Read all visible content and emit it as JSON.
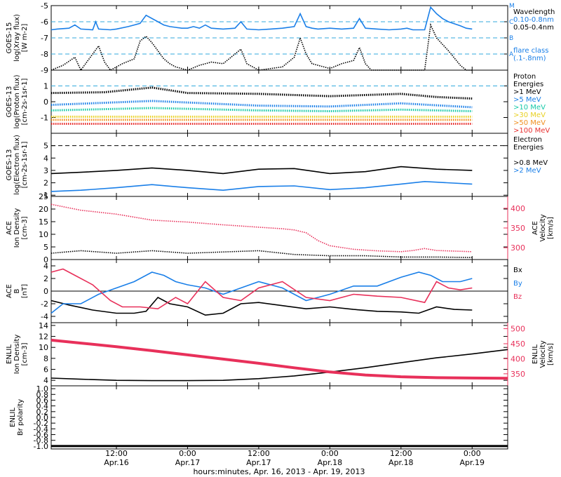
{
  "figure": {
    "xaxis_title": "hours:minutes, Apr. 16, 2013 - Apr. 19, 2013",
    "xticks": [
      {
        "t": 12,
        "time": "12:00",
        "date": "Apr.16"
      },
      {
        "t": 24,
        "time": "0:00",
        "date": "Apr.17"
      },
      {
        "t": 36,
        "time": "12:00",
        "date": "Apr.17"
      },
      {
        "t": 48,
        "time": "0:00",
        "date": "Apr.18"
      },
      {
        "t": 60,
        "time": "12:00",
        "date": "Apr.18"
      },
      {
        "t": 72,
        "time": "0:00",
        "date": "Apr.19"
      }
    ],
    "xrange_hours": [
      1,
      78
    ]
  },
  "colors": {
    "axis": "#000000",
    "blue": "#1a7fe8",
    "cyan": "#22c4e8",
    "pink": "#e8305a",
    "teal": "#15c9a8",
    "yellow": "#e8d020",
    "orange": "#f09020",
    "red": "#e83030",
    "dashed": "#33aadd"
  },
  "chart_data": [
    {
      "id": "goes-xray",
      "type": "line",
      "ylabel": [
        "GOES-15",
        "log(Xray flux)",
        "[W m-2]"
      ],
      "ylim": [
        -9,
        -5
      ],
      "yticks": [
        -9,
        -8,
        -7,
        -6,
        -5
      ],
      "right_labels": [
        {
          "text": "Wavelength",
          "color": "#000000"
        },
        {
          "text": "0.10-0.8nm",
          "color": "#1a7fe8"
        },
        {
          "text": "0.05-0.4nm",
          "color": "#000000"
        },
        {
          "text": "",
          "color": "#000000"
        },
        {
          "text": "",
          "color": "#000000"
        },
        {
          "text": "flare class",
          "color": "#1a7fe8"
        },
        {
          "text": "(.1-.8nm)",
          "color": "#1a7fe8"
        }
      ],
      "flare_classes": [
        {
          "label": "M",
          "value": -5
        },
        {
          "label": "C",
          "value": -6
        },
        {
          "label": "B",
          "value": -7
        },
        {
          "label": "A",
          "value": -8
        }
      ],
      "series": [
        {
          "name": "0.10-0.8nm",
          "color": "#1a7fe8",
          "x": [
            1,
            2,
            4,
            5,
            6,
            8,
            8.5,
            9,
            11,
            12,
            14,
            15,
            16,
            17,
            19,
            20,
            21,
            22,
            23,
            24,
            25,
            26,
            27,
            28,
            30,
            32,
            33,
            34,
            36,
            38,
            40,
            42,
            43,
            44,
            45,
            46,
            48,
            50,
            52,
            53,
            54,
            56,
            58,
            60,
            61,
            62,
            64,
            65,
            66,
            67,
            68,
            70,
            71,
            72
          ],
          "values": [
            -6.5,
            -6.45,
            -6.4,
            -6.2,
            -6.45,
            -6.5,
            -6.0,
            -6.45,
            -6.5,
            -6.45,
            -6.3,
            -6.2,
            -6.1,
            -5.6,
            -6.0,
            -6.2,
            -6.3,
            -6.35,
            -6.4,
            -6.4,
            -6.3,
            -6.4,
            -6.2,
            -6.4,
            -6.45,
            -6.4,
            -6.0,
            -6.45,
            -6.5,
            -6.45,
            -6.4,
            -6.3,
            -5.5,
            -6.3,
            -6.4,
            -6.45,
            -6.4,
            -6.45,
            -6.4,
            -5.8,
            -6.4,
            -6.45,
            -6.5,
            -6.45,
            -6.4,
            -6.5,
            -6.5,
            -5.1,
            -5.5,
            -5.8,
            -6.0,
            -6.25,
            -6.4,
            -6.45
          ]
        },
        {
          "name": "0.05-0.4nm",
          "color": "#000000",
          "x": [
            1,
            3,
            5,
            6,
            7,
            9,
            10,
            11,
            13,
            15,
            16,
            17,
            18,
            19,
            20,
            21,
            22,
            23,
            24,
            26,
            28,
            30,
            33,
            34,
            36,
            40,
            42,
            43,
            44,
            45,
            48,
            50,
            52,
            53,
            54,
            55,
            58,
            60,
            64,
            65,
            66,
            68,
            70,
            71,
            72
          ],
          "values": [
            -9,
            -8.7,
            -8.2,
            -9,
            -8.5,
            -7.5,
            -8.5,
            -9,
            -8.6,
            -8.3,
            -7.2,
            -6.9,
            -7.3,
            -7.8,
            -8.3,
            -8.6,
            -8.8,
            -8.9,
            -9,
            -8.7,
            -8.5,
            -8.6,
            -7.7,
            -8.6,
            -9,
            -8.8,
            -8.2,
            -7.0,
            -8.0,
            -8.6,
            -8.9,
            -8.6,
            -8.4,
            -7.6,
            -8.6,
            -9,
            -9,
            -9,
            -9,
            -6.2,
            -7.0,
            -7.8,
            -8.7,
            -9,
            -9
          ]
        }
      ]
    },
    {
      "id": "goes-proton",
      "type": "line",
      "ylabel": [
        "GOES-13",
        "log(Proton flux)",
        "[cm-2s-1sr-1]"
      ],
      "ylim": [
        -2,
        2
      ],
      "yticks": [
        -1,
        0,
        1
      ],
      "right_labels": [
        {
          "text": "Proton",
          "color": "#000000"
        },
        {
          "text": "Energies",
          "color": "#000000"
        },
        {
          "text": ">1 MeV",
          "color": "#000000"
        },
        {
          "text": ">5 MeV",
          "color": "#1a7fe8"
        },
        {
          "text": ">10 MeV",
          "color": "#15c9a8"
        },
        {
          "text": ">30 MeV",
          "color": "#e8d020"
        },
        {
          "text": ">50 MeV",
          "color": "#f09020"
        },
        {
          "text": ">100 MeV",
          "color": "#e83030"
        }
      ],
      "series": [
        {
          "name": ">1 MeV",
          "color": "#000000",
          "x": [
            1,
            10,
            18,
            24,
            36,
            48,
            60,
            66,
            72
          ],
          "values": [
            0.55,
            0.6,
            0.9,
            0.55,
            0.5,
            0.35,
            0.5,
            0.3,
            0.2
          ]
        },
        {
          "name": ">5 MeV",
          "color": "#1a7fe8",
          "x": [
            1,
            18,
            36,
            48,
            60,
            72
          ],
          "values": [
            -0.2,
            0.05,
            -0.25,
            -0.3,
            -0.1,
            -0.35
          ]
        },
        {
          "name": ">10 MeV",
          "color": "#15c9a8",
          "x": [
            1,
            18,
            36,
            48,
            60,
            72
          ],
          "values": [
            -0.55,
            -0.4,
            -0.55,
            -0.6,
            -0.5,
            -0.6
          ]
        },
        {
          "name": ">30 MeV",
          "color": "#e8d020",
          "x": [
            1,
            72
          ],
          "values": [
            -0.95,
            -0.95
          ]
        },
        {
          "name": ">50 MeV",
          "color": "#f09020",
          "x": [
            1,
            72
          ],
          "values": [
            -1.15,
            -1.15
          ]
        },
        {
          "name": ">100 MeV",
          "color": "#e83030",
          "x": [
            1,
            72
          ],
          "values": [
            -1.4,
            -1.4
          ]
        }
      ],
      "threshold": 1
    },
    {
      "id": "goes-electron",
      "type": "line",
      "ylabel": [
        "GOES-13",
        "log(Electron flux)",
        "[cm-2s-1sr-1]"
      ],
      "ylim": [
        0.9,
        6
      ],
      "yticks": [
        1,
        2,
        3,
        4,
        5
      ],
      "right_labels": [
        {
          "text": "Electron",
          "color": "#000000"
        },
        {
          "text": "Energies",
          "color": "#000000"
        },
        {
          "text": "",
          "color": "#000000"
        },
        {
          "text": ">0.8 MeV",
          "color": "#000000"
        },
        {
          "text": ">2 MeV",
          "color": "#1a7fe8"
        }
      ],
      "series": [
        {
          "name": ">0.8 MeV",
          "color": "#000000",
          "x": [
            1,
            6,
            12,
            18,
            24,
            30,
            36,
            42,
            48,
            54,
            60,
            66,
            72
          ],
          "values": [
            2.75,
            2.85,
            3.0,
            3.2,
            3.0,
            2.75,
            3.1,
            3.15,
            2.75,
            2.9,
            3.3,
            3.1,
            3.0
          ]
        },
        {
          "name": ">2 MeV",
          "color": "#1a7fe8",
          "x": [
            1,
            6,
            12,
            18,
            24,
            30,
            36,
            42,
            48,
            54,
            60,
            64,
            66,
            72
          ],
          "values": [
            1.3,
            1.4,
            1.6,
            1.85,
            1.6,
            1.4,
            1.7,
            1.75,
            1.45,
            1.6,
            1.9,
            2.1,
            2.05,
            1.9
          ]
        }
      ],
      "threshold": 5
    },
    {
      "id": "ace-density",
      "type": "scatter",
      "ylabel": [
        "ACE",
        "Ion Density",
        "[cm-3]"
      ],
      "ylim": [
        0,
        25
      ],
      "yticks": [
        0,
        5,
        10,
        15,
        20,
        25
      ],
      "right_axis": {
        "label": [
          "ACE",
          "Velocity",
          "[km/s]"
        ],
        "ylim": [
          270,
          430
        ],
        "yticks": [
          300,
          350,
          400
        ],
        "color": "#e8305a"
      },
      "series": [
        {
          "name": "density",
          "color": "#000000",
          "x": [
            1,
            6,
            12,
            18,
            24,
            30,
            36,
            42,
            48,
            54,
            60,
            66,
            72
          ],
          "values": [
            2.5,
            3.5,
            2.5,
            3.5,
            2.5,
            3.0,
            3.5,
            2.0,
            1.5,
            1.5,
            1.0,
            1.0,
            0.8
          ]
        },
        {
          "name": "velocity",
          "color": "#e8305a",
          "axis": "right",
          "x": [
            1,
            6,
            12,
            18,
            24,
            30,
            36,
            40,
            42,
            44,
            46,
            48,
            52,
            56,
            60,
            62,
            64,
            66,
            72
          ],
          "values": [
            410,
            395,
            385,
            370,
            365,
            358,
            352,
            348,
            345,
            338,
            318,
            305,
            296,
            292,
            290,
            293,
            298,
            293,
            290
          ]
        }
      ]
    },
    {
      "id": "ace-b",
      "type": "line",
      "ylabel": [
        "ACE",
        "B",
        "[nT]"
      ],
      "ylim": [
        -5,
        5
      ],
      "yticks": [
        -4,
        -2,
        0,
        2,
        4
      ],
      "right_labels": [
        {
          "text": "Bx",
          "color": "#000000"
        },
        {
          "text": "By",
          "color": "#1a7fe8"
        },
        {
          "text": "Bz",
          "color": "#e8305a"
        }
      ],
      "series": [
        {
          "name": "Bx",
          "color": "#000000",
          "x": [
            1,
            4,
            8,
            12,
            15,
            17,
            19,
            21,
            24,
            27,
            30,
            33,
            36,
            40,
            44,
            48,
            52,
            56,
            60,
            63,
            66,
            69,
            72
          ],
          "values": [
            -1.5,
            -2.2,
            -3.0,
            -3.5,
            -3.5,
            -3.2,
            -1.0,
            -2.0,
            -2.5,
            -3.8,
            -3.5,
            -2.0,
            -1.8,
            -2.3,
            -2.8,
            -2.5,
            -2.9,
            -3.2,
            -3.3,
            -3.5,
            -2.5,
            -2.9,
            -3.0
          ]
        },
        {
          "name": "By",
          "color": "#1a7fe8",
          "x": [
            1,
            3,
            6,
            9,
            12,
            15,
            18,
            20,
            22,
            24,
            27,
            30,
            33,
            36,
            40,
            44,
            48,
            52,
            56,
            60,
            63,
            65,
            67,
            70,
            72
          ],
          "values": [
            -3.5,
            -2.0,
            -2.0,
            -0.5,
            0.5,
            1.5,
            3.0,
            2.5,
            1.5,
            1.0,
            0.5,
            -0.5,
            0.5,
            1.5,
            0.5,
            -1.5,
            -0.5,
            0.8,
            0.8,
            2.2,
            3.0,
            2.5,
            1.5,
            1.5,
            2.0
          ]
        },
        {
          "name": "Bz",
          "color": "#e8305a",
          "x": [
            1,
            3,
            5,
            8,
            11,
            13,
            16,
            19,
            22,
            24,
            27,
            30,
            33,
            36,
            40,
            44,
            48,
            52,
            56,
            60,
            64,
            66,
            68,
            70,
            72
          ],
          "values": [
            3.0,
            3.5,
            2.5,
            1.0,
            -1.5,
            -2.5,
            -2.5,
            -2.8,
            -1.0,
            -2.0,
            1.5,
            -1.0,
            -1.5,
            0.5,
            1.5,
            -1.0,
            -1.5,
            -0.5,
            -0.8,
            -1.0,
            -1.8,
            1.5,
            0.5,
            0.2,
            0.5
          ]
        }
      ],
      "zero_line": 0
    },
    {
      "id": "enlil",
      "type": "line",
      "ylabel": [
        "ENLIL",
        "Ion Density",
        "[cm-3]"
      ],
      "ylim": [
        3,
        14.5
      ],
      "yticks": [
        4,
        6,
        8,
        10,
        12,
        14
      ],
      "right_axis": {
        "label": [
          "ENLIL",
          "Velocity",
          "[km/s]"
        ],
        "ylim": [
          310,
          520
        ],
        "yticks": [
          350,
          400,
          450,
          500
        ],
        "color": "#e8305a"
      },
      "series": [
        {
          "name": "density",
          "color": "#000000",
          "x": [
            1,
            6,
            12,
            18,
            24,
            30,
            36,
            42,
            48,
            54,
            60,
            66,
            72,
            78
          ],
          "values": [
            4.4,
            4.2,
            4.0,
            3.95,
            3.95,
            4.0,
            4.3,
            4.8,
            5.5,
            6.3,
            7.2,
            8.1,
            8.8,
            9.6
          ]
        },
        {
          "name": "velocity",
          "color": "#e8305a",
          "axis": "right",
          "x": [
            1,
            6,
            12,
            18,
            24,
            30,
            36,
            42,
            48,
            54,
            60,
            66,
            72,
            78
          ],
          "values": [
            462,
            452,
            440,
            427,
            413,
            399,
            385,
            370,
            356,
            346,
            340,
            337,
            336,
            335
          ]
        }
      ]
    },
    {
      "id": "enlil-polarity",
      "type": "line",
      "ylabel": [
        "ENLIL",
        "Br polarity"
      ],
      "ylim": [
        -1.1,
        1.1
      ],
      "yticks": [
        -1.0,
        -0.8,
        -0.6,
        -0.4,
        -0.2,
        0.0,
        0.2,
        0.4,
        0.6,
        0.8,
        1.0
      ],
      "series": [
        {
          "name": "polarity",
          "color": "#000000",
          "x": [
            1,
            78
          ],
          "values": [
            -1.0,
            -1.0
          ]
        }
      ]
    }
  ]
}
